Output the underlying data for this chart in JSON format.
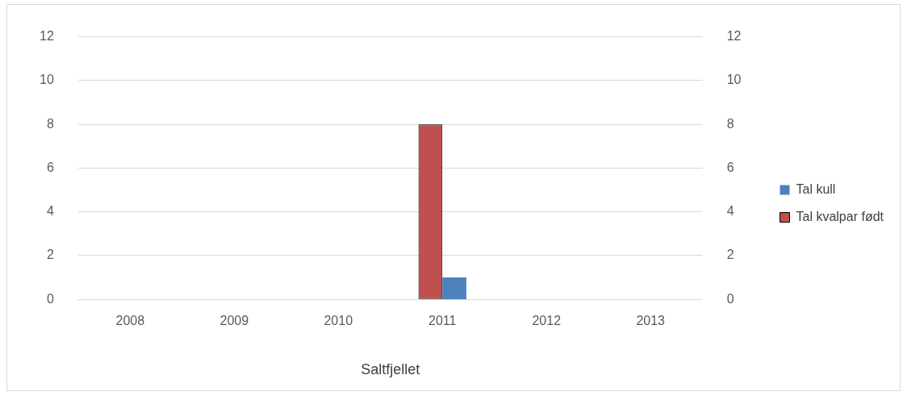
{
  "chart_data": {
    "type": "bar",
    "xlabel": "Saltfjellet",
    "categories": [
      "2008",
      "2009",
      "2010",
      "2011",
      "2012",
      "2013"
    ],
    "series": [
      {
        "name": "Tal kull",
        "color": "#4f81bd",
        "axis": "y2",
        "values": [
          0,
          0,
          0,
          1,
          0,
          0
        ]
      },
      {
        "name": "Tal kvalpar født",
        "color": "#c0504d",
        "axis": "y",
        "values": [
          0,
          0,
          0,
          8,
          0,
          0
        ]
      }
    ],
    "ylim": [
      0,
      12
    ],
    "yticks": [
      0,
      2,
      4,
      6,
      8,
      10,
      12
    ],
    "y2lim": [
      0,
      12
    ],
    "y2ticks": [
      0,
      2,
      4,
      6,
      8,
      10,
      12
    ],
    "grid": "y",
    "legend": "right"
  }
}
